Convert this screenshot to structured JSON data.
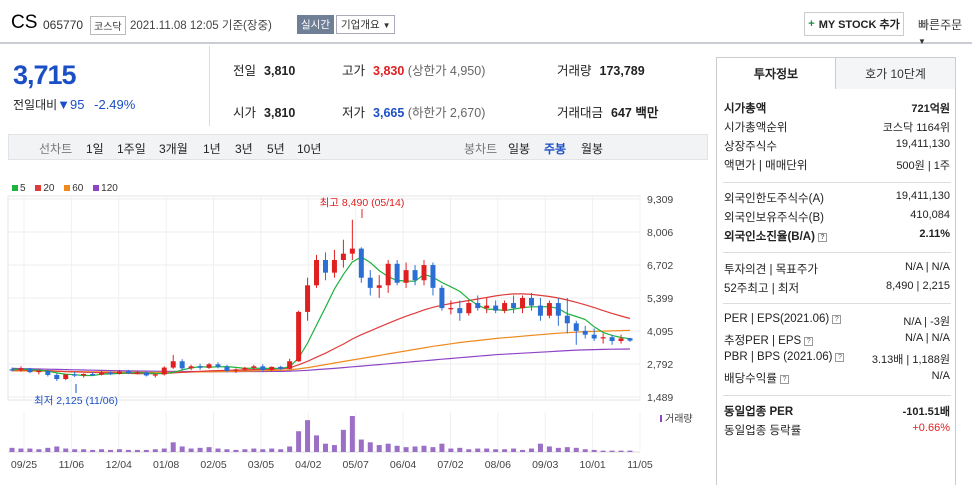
{
  "header": {
    "name": "CS",
    "code": "065770",
    "market": "코스닥",
    "time": "2021.11.08 12:05  기준(장중)",
    "realtime_label": "실시간",
    "overview_label": "기업개요",
    "mystock_label": "MY STOCK 추가",
    "quick_label": "빠른주문"
  },
  "price": {
    "current": "3,715",
    "diff_label": "전일대비",
    "diff_value": "95",
    "diff_rate": "-2.49%"
  },
  "quote": {
    "prev_label": "전일",
    "prev": "3,810",
    "high_label": "고가",
    "high": "3,830",
    "upper_limit": "(상한가 4,950)",
    "volume_label": "거래량",
    "volume": "173,789",
    "open_label": "시가",
    "open": "3,810",
    "low_label": "저가",
    "low": "3,665",
    "lower_limit": "(하한가 2,670)",
    "amount_label": "거래대금",
    "amount": "647 백만"
  },
  "period": {
    "line_label": "선차트",
    "line_items": [
      "1일",
      "1주일",
      "3개월",
      "1년",
      "3년",
      "5년",
      "10년"
    ],
    "candle_label": "봉차트",
    "candle_items": [
      "일봉",
      "주봉",
      "월봉"
    ],
    "selected": "주봉"
  },
  "legend": [
    {
      "label": "5",
      "color": "#1db33d"
    },
    {
      "label": "20",
      "color": "#e03b3b"
    },
    {
      "label": "60",
      "color": "#f08a1c"
    },
    {
      "label": "120",
      "color": "#8e44c6"
    }
  ],
  "chart_data": {
    "type": "candlestick",
    "title": "",
    "y_ticks": [
      "9,309",
      "8,006",
      "6,702",
      "5,399",
      "4,095",
      "2,792",
      "1,489"
    ],
    "ylim": [
      1489,
      9309
    ],
    "x_ticks": [
      "09/25",
      "11/06",
      "12/04",
      "01/08",
      "02/05",
      "03/05",
      "04/02",
      "05/07",
      "06/04",
      "07/02",
      "08/06",
      "09/03",
      "10/01",
      "11/05"
    ],
    "high_annotation": "최고 8,490 (05/14)",
    "low_annotation": "최저 2,125 (11/06)",
    "volume_label": "거래량",
    "candles": [
      [
        2580,
        2650,
        2500,
        2560
      ],
      [
        2560,
        2700,
        2480,
        2620
      ],
      [
        2620,
        2640,
        2430,
        2470
      ],
      [
        2470,
        2560,
        2380,
        2520
      ],
      [
        2520,
        2580,
        2300,
        2360
      ],
      [
        2360,
        2420,
        2125,
        2200
      ],
      [
        2200,
        2400,
        2150,
        2380
      ],
      [
        2380,
        2480,
        2280,
        2340
      ],
      [
        2340,
        2420,
        2260,
        2400
      ],
      [
        2400,
        2470,
        2330,
        2370
      ],
      [
        2370,
        2520,
        2340,
        2450
      ],
      [
        2450,
        2500,
        2360,
        2400
      ],
      [
        2400,
        2560,
        2380,
        2500
      ],
      [
        2500,
        2560,
        2400,
        2440
      ],
      [
        2440,
        2520,
        2380,
        2460
      ],
      [
        2460,
        2490,
        2300,
        2340
      ],
      [
        2340,
        2420,
        2260,
        2380
      ],
      [
        2380,
        2700,
        2340,
        2650
      ],
      [
        2650,
        3150,
        2600,
        2900
      ],
      [
        2900,
        2980,
        2560,
        2620
      ],
      [
        2620,
        2760,
        2550,
        2700
      ],
      [
        2700,
        2800,
        2560,
        2640
      ],
      [
        2640,
        2830,
        2600,
        2780
      ],
      [
        2780,
        2860,
        2620,
        2680
      ],
      [
        2680,
        2760,
        2470,
        2520
      ],
      [
        2520,
        2620,
        2440,
        2580
      ],
      [
        2580,
        2680,
        2520,
        2640
      ],
      [
        2640,
        2760,
        2560,
        2700
      ],
      [
        2700,
        2780,
        2500,
        2560
      ],
      [
        2560,
        2700,
        2500,
        2680
      ],
      [
        2680,
        2720,
        2560,
        2600
      ],
      [
        2600,
        3000,
        2580,
        2900
      ],
      [
        2900,
        4900,
        2880,
        4850
      ],
      [
        4850,
        6200,
        4500,
        5900
      ],
      [
        5900,
        7100,
        5800,
        6900
      ],
      [
        6900,
        7200,
        6100,
        6400
      ],
      [
        6400,
        7300,
        6200,
        6900
      ],
      [
        6900,
        7700,
        6600,
        7150
      ],
      [
        7150,
        8490,
        6900,
        7350
      ],
      [
        7350,
        7400,
        6000,
        6200
      ],
      [
        6200,
        6500,
        5500,
        5800
      ],
      [
        5800,
        6300,
        5400,
        5900
      ],
      [
        5900,
        6900,
        5600,
        6750
      ],
      [
        6750,
        6900,
        5900,
        6000
      ],
      [
        6000,
        6800,
        5800,
        6500
      ],
      [
        6500,
        6700,
        5900,
        6100
      ],
      [
        6100,
        6900,
        5900,
        6700
      ],
      [
        6700,
        6800,
        5500,
        5800
      ],
      [
        5800,
        5900,
        4900,
        5000
      ],
      [
        5000,
        5300,
        4750,
        5000
      ],
      [
        5000,
        5300,
        4500,
        4800
      ],
      [
        4800,
        5300,
        4700,
        5200
      ],
      [
        5200,
        5500,
        4900,
        5000
      ],
      [
        5000,
        5400,
        4800,
        5100
      ],
      [
        5100,
        5300,
        4800,
        4900
      ],
      [
        4900,
        5300,
        4800,
        5200
      ],
      [
        5200,
        5500,
        4800,
        5000
      ],
      [
        5000,
        5500,
        4800,
        5400
      ],
      [
        5400,
        5600,
        4900,
        5100
      ],
      [
        5100,
        5400,
        4500,
        4700
      ],
      [
        4700,
        5300,
        4600,
        5200
      ],
      [
        5200,
        5400,
        4300,
        4700
      ],
      [
        4700,
        5400,
        4000,
        4400
      ],
      [
        4400,
        4500,
        3550,
        4100
      ],
      [
        4100,
        4300,
        3800,
        3950
      ],
      [
        3950,
        4200,
        3700,
        3800
      ],
      [
        3800,
        4000,
        3600,
        3850
      ],
      [
        3850,
        3950,
        3550,
        3700
      ],
      [
        3700,
        3950,
        3600,
        3800
      ],
      [
        3810,
        3830,
        3665,
        3715
      ]
    ],
    "ma5": [
      2580,
      2590,
      2570,
      2550,
      2510,
      2440,
      2390,
      2370,
      2340,
      2340,
      2390,
      2400,
      2420,
      2440,
      2450,
      2440,
      2420,
      2410,
      2460,
      2560,
      2640,
      2690,
      2670,
      2680,
      2690,
      2660,
      2620,
      2630,
      2620,
      2620,
      2620,
      2680,
      3030,
      3620,
      4330,
      5030,
      5750,
      6330,
      6820,
      7020,
      6800,
      6480,
      6240,
      6090,
      6070,
      6060,
      6330,
      6220,
      6010,
      5840,
      5660,
      5350,
      5120,
      4960,
      4950,
      4900,
      4960,
      5020,
      5050,
      5050,
      5060,
      4980,
      4780,
      4670,
      4550,
      4260,
      4040,
      3920,
      3840,
      3790
    ],
    "ma20": [
      2560,
      2555,
      2545,
      2540,
      2530,
      2510,
      2490,
      2480,
      2470,
      2460,
      2450,
      2440,
      2430,
      2420,
      2415,
      2410,
      2410,
      2420,
      2440,
      2460,
      2480,
      2500,
      2520,
      2530,
      2540,
      2550,
      2560,
      2570,
      2580,
      2590,
      2600,
      2640,
      2760,
      2900,
      3060,
      3220,
      3400,
      3580,
      3780,
      3950,
      4100,
      4250,
      4400,
      4540,
      4680,
      4800,
      4930,
      5030,
      5110,
      5180,
      5240,
      5300,
      5360,
      5420,
      5480,
      5530,
      5560,
      5560,
      5540,
      5500,
      5460,
      5400,
      5320,
      5230,
      5130,
      5020,
      4900,
      4790,
      4690,
      4590
    ],
    "ma60": [
      2520,
      2518,
      2515,
      2512,
      2508,
      2503,
      2498,
      2493,
      2488,
      2484,
      2480,
      2476,
      2473,
      2470,
      2468,
      2466,
      2465,
      2466,
      2468,
      2471,
      2475,
      2480,
      2486,
      2492,
      2498,
      2505,
      2512,
      2519,
      2526,
      2534,
      2542,
      2560,
      2600,
      2650,
      2710,
      2770,
      2830,
      2890,
      2950,
      3010,
      3070,
      3130,
      3190,
      3250,
      3310,
      3370,
      3430,
      3490,
      3540,
      3590,
      3640,
      3680,
      3720,
      3760,
      3800,
      3830,
      3860,
      3890,
      3920,
      3950,
      3980,
      4010,
      4030,
      4050,
      4070,
      4080,
      4090,
      4100,
      4110,
      4120
    ],
    "ma120": [
      2620,
      2612,
      2604,
      2596,
      2588,
      2580,
      2572,
      2564,
      2556,
      2548,
      2540,
      2533,
      2527,
      2521,
      2515,
      2510,
      2506,
      2502,
      2499,
      2497,
      2495,
      2494,
      2493,
      2493,
      2493,
      2494,
      2495,
      2496,
      2498,
      2500,
      2502,
      2510,
      2525,
      2545,
      2570,
      2595,
      2620,
      2650,
      2680,
      2710,
      2740,
      2770,
      2800,
      2830,
      2860,
      2890,
      2920,
      2950,
      2980,
      3010,
      3040,
      3070,
      3100,
      3130,
      3160,
      3180,
      3200,
      3220,
      3240,
      3260,
      3280,
      3300,
      3320,
      3340,
      3350,
      3360,
      3370,
      3375,
      3380,
      3385
    ],
    "volume": [
      6,
      5,
      5,
      4,
      6,
      8,
      5,
      4,
      4,
      3,
      4,
      3,
      4,
      3,
      3,
      3,
      4,
      5,
      14,
      8,
      5,
      6,
      7,
      5,
      4,
      3,
      4,
      5,
      4,
      5,
      4,
      8,
      30,
      46,
      24,
      12,
      10,
      32,
      52,
      18,
      14,
      10,
      12,
      9,
      7,
      8,
      9,
      7,
      12,
      5,
      6,
      4,
      5,
      5,
      4,
      4,
      5,
      3,
      5,
      12,
      8,
      6,
      7,
      6,
      4,
      3,
      2,
      2,
      2,
      2
    ]
  },
  "panel": {
    "tab_info": "투자정보",
    "tab_hoga": "호가 10단계",
    "rows1": [
      {
        "k": "시가총액",
        "v": "721억원",
        "bold": true
      },
      {
        "k": "시가총액순위",
        "v": "코스닥 1164위"
      },
      {
        "k": "상장주식수",
        "v": "19,411,130"
      },
      {
        "k": "액면가 | 매매단위",
        "v": "500원 | 1주"
      }
    ],
    "rows2": [
      {
        "k": "외국인한도주식수(A)",
        "v": "19,411,130"
      },
      {
        "k": "외국인보유주식수(B)",
        "v": "410,084"
      },
      {
        "k": "외국인소진율(B/A)",
        "v": "2.11%",
        "bold": true,
        "icon": true
      }
    ],
    "rows3": [
      {
        "k": "투자의견 | 목표주가",
        "v": "N/A | N/A"
      },
      {
        "k": "52주최고 | 최저",
        "v": "8,490 | 2,215"
      }
    ],
    "rows4": [
      {
        "k": "PER | EPS(2021.06)",
        "v": "N/A | -3원",
        "icon": true
      },
      {
        "k": "추정PER | EPS",
        "v": "N/A | N/A",
        "icon": true
      },
      {
        "k": "PBR | BPS (2021.06)",
        "v": "3.13배 | 1,188원",
        "icon": true
      },
      {
        "k": "배당수익률",
        "v": "N/A",
        "icon": true
      }
    ],
    "rows5": [
      {
        "k": "동일업종 PER",
        "v": "-101.51배",
        "bold": true
      },
      {
        "k": "동일업종 등락률",
        "v": "+0.66%",
        "red": true
      }
    ]
  },
  "colors": {
    "up": "#e02020",
    "down": "#1b4fc5",
    "accent": "#1b4fc5"
  }
}
